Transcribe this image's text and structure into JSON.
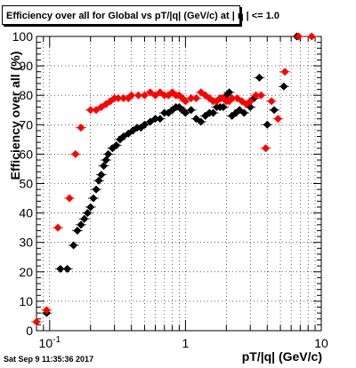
{
  "title": "Efficiency over all for Global vs pT/|q| (GeV/c) at |  η | <= 1.0",
  "timestamp": "Sat Sep  9 11:35:36 2017",
  "chart_data": {
    "type": "scatter",
    "title": "Efficiency over all for Global vs pT/|q| (GeV/c) at |  η | <= 1.0",
    "xlabel": "pT/|q| (GeV/c)",
    "ylabel": "Efficiency over all (%)",
    "xscale": "log",
    "xlim": [
      0.08,
      10
    ],
    "ylim": [
      0,
      100
    ],
    "x_ticks": [
      {
        "v": 0.1,
        "label": "10^-1"
      },
      {
        "v": 1,
        "label": "1"
      },
      {
        "v": 10,
        "label": "10"
      }
    ],
    "y_ticks": [
      0,
      10,
      20,
      30,
      40,
      50,
      60,
      70,
      80,
      90,
      100
    ],
    "grid": true,
    "series": [
      {
        "color": "#000000",
        "points": [
          [
            0.095,
            6
          ],
          [
            0.12,
            21
          ],
          [
            0.135,
            21
          ],
          [
            0.15,
            29
          ],
          [
            0.16,
            34
          ],
          [
            0.17,
            36
          ],
          [
            0.18,
            38
          ],
          [
            0.19,
            40
          ],
          [
            0.2,
            42
          ],
          [
            0.21,
            45
          ],
          [
            0.22,
            48
          ],
          [
            0.23,
            51
          ],
          [
            0.24,
            53
          ],
          [
            0.25,
            56
          ],
          [
            0.26,
            58
          ],
          [
            0.27,
            60
          ],
          [
            0.29,
            62
          ],
          [
            0.31,
            63
          ],
          [
            0.33,
            65
          ],
          [
            0.35,
            66
          ],
          [
            0.38,
            67
          ],
          [
            0.41,
            68
          ],
          [
            0.44,
            69
          ],
          [
            0.47,
            69
          ],
          [
            0.5,
            70
          ],
          [
            0.55,
            71
          ],
          [
            0.6,
            72
          ],
          [
            0.65,
            72
          ],
          [
            0.7,
            74
          ],
          [
            0.75,
            74
          ],
          [
            0.8,
            75
          ],
          [
            0.85,
            76
          ],
          [
            0.9,
            76
          ],
          [
            0.95,
            75
          ],
          [
            1.0,
            74
          ],
          [
            1.1,
            75
          ],
          [
            1.2,
            72
          ],
          [
            1.3,
            71
          ],
          [
            1.4,
            73
          ],
          [
            1.5,
            74
          ],
          [
            1.6,
            74
          ],
          [
            1.7,
            76
          ],
          [
            1.8,
            76
          ],
          [
            1.9,
            76
          ],
          [
            2.0,
            80
          ],
          [
            2.1,
            81
          ],
          [
            2.2,
            73
          ],
          [
            2.35,
            74
          ],
          [
            2.5,
            75
          ],
          [
            2.7,
            74
          ],
          [
            3.0,
            76
          ],
          [
            3.2,
            79
          ],
          [
            3.5,
            86
          ],
          [
            4.0,
            70
          ],
          [
            4.5,
            75
          ],
          [
            5.3,
            83
          ],
          [
            6.6,
            100
          ]
        ]
      },
      {
        "color": "#ff0000",
        "points": [
          [
            0.08,
            3
          ],
          [
            0.095,
            7
          ],
          [
            0.115,
            35
          ],
          [
            0.14,
            45
          ],
          [
            0.155,
            60
          ],
          [
            0.17,
            69
          ],
          [
            0.2,
            75
          ],
          [
            0.22,
            75
          ],
          [
            0.24,
            76
          ],
          [
            0.26,
            77
          ],
          [
            0.28,
            78
          ],
          [
            0.3,
            79
          ],
          [
            0.32,
            79
          ],
          [
            0.35,
            79
          ],
          [
            0.38,
            79
          ],
          [
            0.4,
            80
          ],
          [
            0.45,
            80
          ],
          [
            0.5,
            80
          ],
          [
            0.55,
            81
          ],
          [
            0.6,
            80
          ],
          [
            0.65,
            81
          ],
          [
            0.7,
            80
          ],
          [
            0.75,
            80
          ],
          [
            0.8,
            81
          ],
          [
            0.85,
            80
          ],
          [
            0.9,
            80
          ],
          [
            0.95,
            79
          ],
          [
            1.0,
            78
          ],
          [
            1.1,
            79
          ],
          [
            1.2,
            79
          ],
          [
            1.3,
            81
          ],
          [
            1.4,
            80
          ],
          [
            1.5,
            79
          ],
          [
            1.6,
            78
          ],
          [
            1.7,
            78
          ],
          [
            1.8,
            79
          ],
          [
            1.9,
            79
          ],
          [
            2.0,
            78
          ],
          [
            2.1,
            78
          ],
          [
            2.2,
            79
          ],
          [
            2.4,
            79
          ],
          [
            2.6,
            78
          ],
          [
            2.8,
            77
          ],
          [
            3.0,
            78
          ],
          [
            3.3,
            80
          ],
          [
            3.6,
            80
          ],
          [
            3.9,
            62
          ],
          [
            4.3,
            78
          ],
          [
            4.8,
            72
          ],
          [
            5.4,
            88
          ],
          [
            6.8,
            100
          ],
          [
            8.5,
            100
          ]
        ]
      }
    ]
  }
}
